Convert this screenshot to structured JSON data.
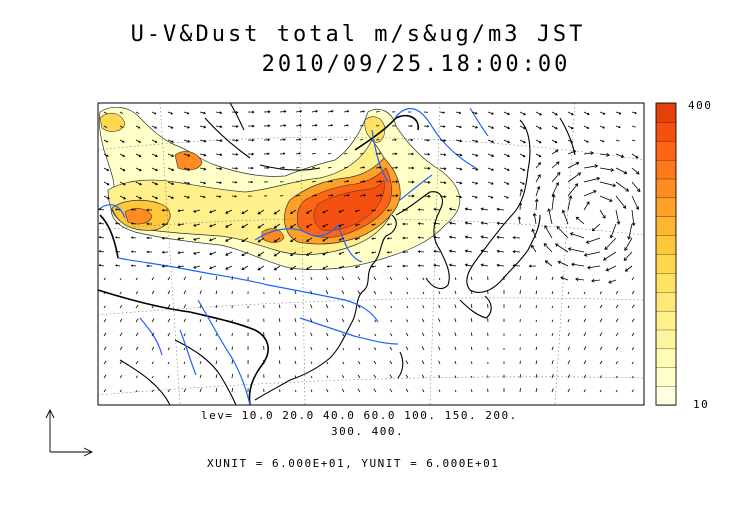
{
  "title": {
    "line1": "U-V&Dust total m/s&ug/m3 JST",
    "line2": "2010/09/25.18:00:00"
  },
  "colorbar": {
    "max_label": "400",
    "min_label": "10",
    "colors": [
      "#FFFFE0",
      "#FFFFC8",
      "#FFFAB4",
      "#FFF5A0",
      "#FFF08C",
      "#FFE878",
      "#FFE164",
      "#FFD850",
      "#FFC83C",
      "#FFB432",
      "#FFA028",
      "#FF8C20",
      "#FF781A",
      "#FF6414",
      "#F5500F",
      "#E6400A"
    ]
  },
  "levels": {
    "line1": "lev= 10.0 20.0 40.0 60.0 100. 150. 200.",
    "line2": "300. 400."
  },
  "units": "XUNIT = 6.000E+01, YUNIT = 6.000E+01",
  "map": {
    "coast_color": "#000000",
    "river_color": "#1E64FF",
    "graticule_color": "#777777"
  }
}
